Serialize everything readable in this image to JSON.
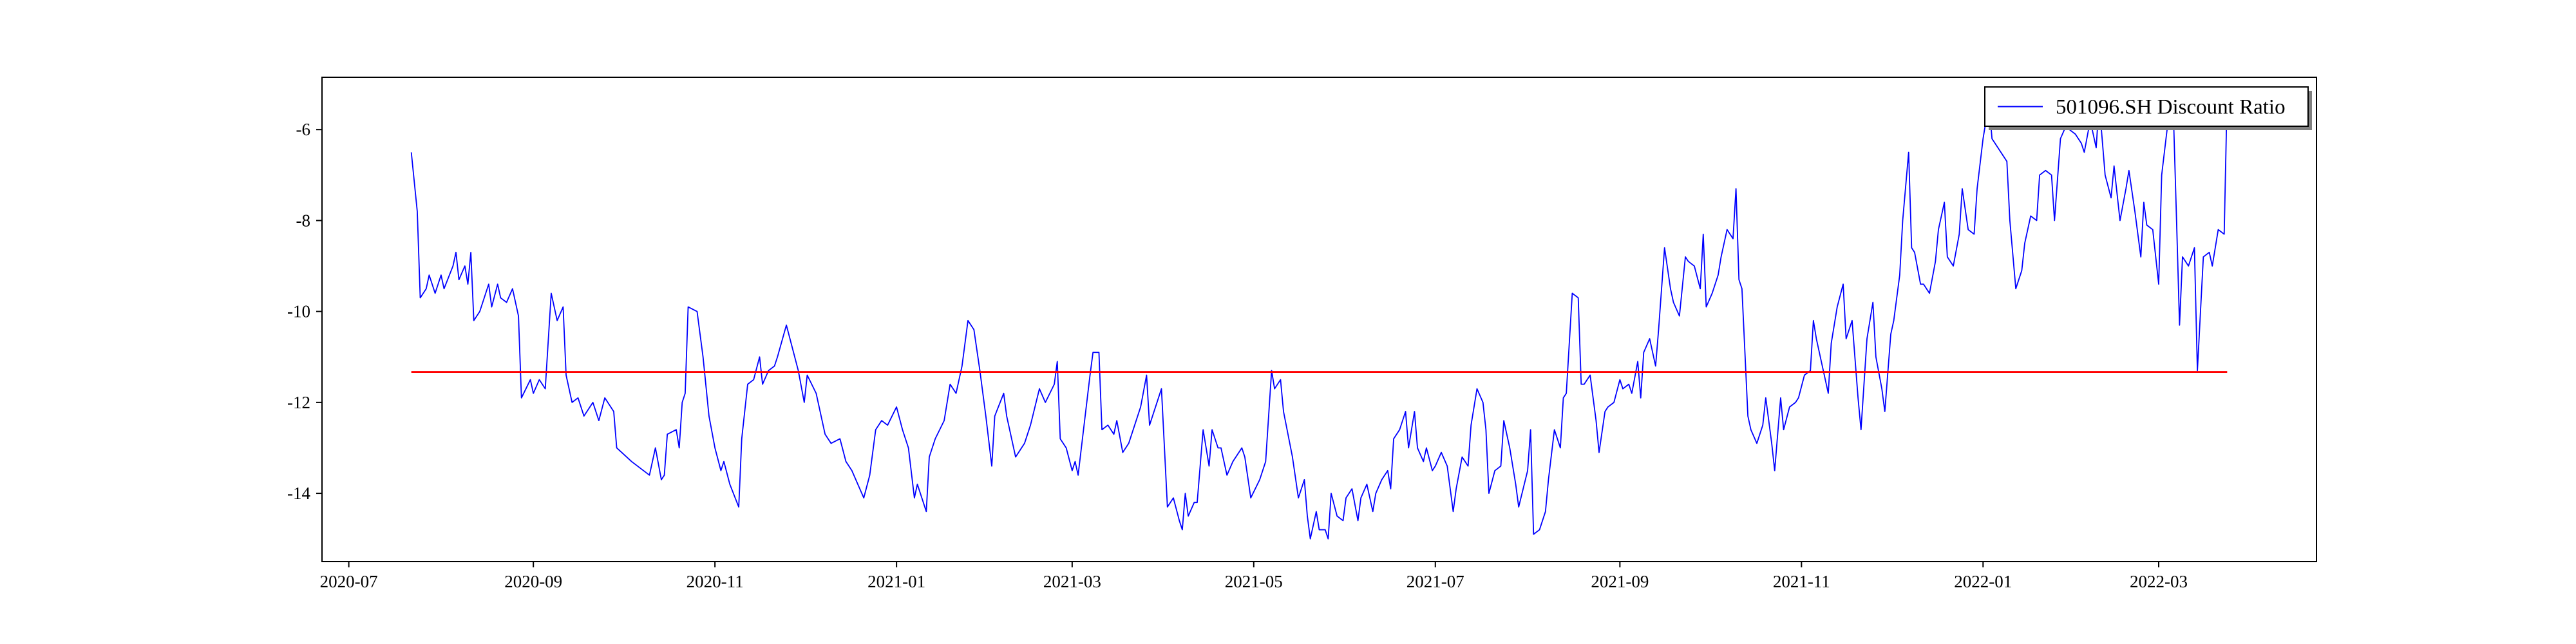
{
  "chart_data": {
    "type": "line",
    "x": [
      18465,
      18467,
      18468,
      18470,
      18471,
      18473,
      18475,
      18476,
      18479,
      18480,
      18481,
      18483,
      18484,
      18485,
      18486,
      18488,
      18490,
      18491,
      18492,
      18494,
      18495,
      18497,
      18499,
      18501,
      18502,
      18505,
      18506,
      18508,
      18510,
      18512,
      18514,
      18516,
      18517,
      18519,
      18521,
      18523,
      18526,
      18528,
      18530,
      18533,
      18534,
      18539,
      18545,
      18547,
      18549,
      18550,
      18551,
      18554,
      18555,
      18556,
      18557,
      18558,
      18561,
      18563,
      18565,
      18567,
      18569,
      18570,
      18572,
      18575,
      18576,
      18578,
      18580,
      18582,
      18583,
      18585,
      18587,
      18588,
      18591,
      18593,
      18595,
      18597,
      18598,
      18601,
      18604,
      18606,
      18609,
      18611,
      18613,
      18617,
      18619,
      18621,
      18623,
      18625,
      18628,
      18630,
      18632,
      18634,
      18635,
      18637,
      18638,
      18639,
      18641,
      18644,
      18646,
      18648,
      18650,
      18652,
      18654,
      18656,
      18658,
      18660,
      18661,
      18664,
      18665,
      18668,
      18671,
      18673,
      18676,
      18678,
      18681,
      18682,
      18683,
      18685,
      18687,
      18688,
      18689,
      18691,
      18693,
      18694,
      18696,
      18697,
      18699,
      18701,
      18702,
      18704,
      18706,
      18708,
      18710,
      18712,
      18713,
      18715,
      18717,
      18718,
      18719,
      18721,
      18723,
      18724,
      18725,
      18726,
      18728,
      18729,
      18731,
      18733,
      18734,
      18736,
      18737,
      18739,
      18741,
      18744,
      18745,
      18747,
      18750,
      18752,
      18754,
      18755,
      18757,
      18758,
      18761,
      18763,
      18765,
      18766,
      18767,
      18769,
      18770,
      18772,
      18773,
      18774,
      18776,
      18778,
      18779,
      18781,
      18783,
      18784,
      18786,
      18788,
      18789,
      18791,
      18793,
      18794,
      18795,
      18797,
      18799,
      18800,
      18802,
      18803,
      18805,
      18806,
      18808,
      18809,
      18811,
      18813,
      18815,
      18816,
      18818,
      18820,
      18821,
      18823,
      18825,
      18826,
      18827,
      18829,
      18831,
      18832,
      18834,
      18836,
      18837,
      18840,
      18841,
      18842,
      18844,
      18846,
      18847,
      18849,
      18851,
      18852,
      18853,
      18855,
      18857,
      18858,
      18859,
      18861,
      18863,
      18864,
      18866,
      18867,
      18869,
      18871,
      18872,
      18874,
      18875,
      18877,
      18878,
      18879,
      18881,
      18883,
      18884,
      18886,
      18888,
      18889,
      18891,
      18893,
      18894,
      18896,
      18898,
      18899,
      18900,
      18902,
      18904,
      18905,
      18907,
      18909,
      18910,
      18911,
      18912,
      18914,
      18915,
      18917,
      18919,
      18920,
      18922,
      18923,
      18925,
      18926,
      18928,
      18930,
      18931,
      18933,
      18935,
      18936,
      18937,
      18939,
      18941,
      18942,
      18944,
      18946,
      18947,
      18949,
      18951,
      18952,
      18954,
      18956,
      18957,
      18959,
      18960,
      18962,
      18963,
      18965,
      18966,
      18968,
      18969,
      18970,
      18972,
      18973,
      18975,
      18977,
      18978,
      18980,
      18981,
      18983,
      18985,
      18986,
      18988,
      18990,
      18991,
      18993,
      18995,
      18996,
      18997,
      18999,
      19001,
      19002,
      19004,
      19006,
      19007,
      19009,
      19011,
      19012,
      19014,
      19016,
      19017,
      19019,
      19021,
      19022,
      19024,
      19026,
      19027,
      19029,
      19031,
      19032,
      19034,
      19036,
      19037,
      19039,
      19041,
      19042,
      19044,
      19046,
      19047,
      19048,
      19050,
      19052,
      19053,
      19055,
      19057,
      19058,
      19059,
      19060,
      19062,
      19064,
      19065,
      19067,
      19069,
      19070,
      19072,
      19074,
      19075
    ],
    "series": [
      {
        "name": "501096.SH Discount Ratio",
        "color": "#0000ff",
        "values": [
          -6.5,
          -7.8,
          -9.7,
          -9.5,
          -9.2,
          -9.6,
          -9.2,
          -9.5,
          -9.0,
          -8.7,
          -9.3,
          -9.0,
          -9.4,
          -8.7,
          -10.2,
          -10.0,
          -9.6,
          -9.4,
          -9.9,
          -9.4,
          -9.7,
          -9.8,
          -9.5,
          -10.1,
          -11.9,
          -11.5,
          -11.8,
          -11.5,
          -11.7,
          -9.6,
          -10.2,
          -9.9,
          -11.4,
          -12.0,
          -11.9,
          -12.3,
          -12.0,
          -12.4,
          -11.9,
          -12.2,
          -13.0,
          -13.3,
          -13.6,
          -13.0,
          -13.7,
          -13.6,
          -12.7,
          -12.6,
          -13.0,
          -12.0,
          -11.8,
          -9.9,
          -10.0,
          -11.0,
          -12.3,
          -13.0,
          -13.5,
          -13.3,
          -13.8,
          -14.3,
          -12.8,
          -11.6,
          -11.5,
          -11.0,
          -11.6,
          -11.3,
          -11.2,
          -11.0,
          -10.3,
          -10.8,
          -11.3,
          -12.0,
          -11.4,
          -11.8,
          -12.7,
          -12.9,
          -12.8,
          -13.3,
          -13.5,
          -14.1,
          -13.6,
          -12.6,
          -12.4,
          -12.5,
          -12.1,
          -12.6,
          -13.0,
          -14.1,
          -13.8,
          -14.2,
          -14.4,
          -13.2,
          -12.8,
          -12.4,
          -11.6,
          -11.8,
          -11.2,
          -10.2,
          -10.4,
          -11.3,
          -12.3,
          -13.4,
          -12.3,
          -11.8,
          -12.3,
          -13.2,
          -12.9,
          -12.5,
          -11.7,
          -12.0,
          -11.6,
          -11.1,
          -12.8,
          -13.0,
          -13.5,
          -13.3,
          -13.6,
          -12.5,
          -11.4,
          -10.9,
          -10.9,
          -12.6,
          -12.5,
          -12.7,
          -12.4,
          -13.1,
          -12.9,
          -12.5,
          -12.1,
          -11.4,
          -12.5,
          -12.1,
          -11.7,
          -13.0,
          -14.3,
          -14.1,
          -14.6,
          -14.8,
          -14.0,
          -14.5,
          -14.2,
          -14.2,
          -12.6,
          -13.4,
          -12.6,
          -13.0,
          -13.0,
          -13.6,
          -13.3,
          -13.0,
          -13.2,
          -14.1,
          -13.7,
          -13.3,
          -11.3,
          -11.7,
          -11.5,
          -12.2,
          -13.2,
          -14.1,
          -13.7,
          -14.5,
          -15.0,
          -14.4,
          -14.8,
          -14.8,
          -15.0,
          -14.0,
          -14.5,
          -14.6,
          -14.1,
          -13.9,
          -14.6,
          -14.1,
          -13.8,
          -14.4,
          -14.0,
          -13.7,
          -13.5,
          -13.9,
          -12.8,
          -12.6,
          -12.2,
          -13.0,
          -12.2,
          -13.0,
          -13.3,
          -13.0,
          -13.5,
          -13.4,
          -13.1,
          -13.4,
          -14.4,
          -13.9,
          -13.2,
          -13.4,
          -12.5,
          -11.7,
          -12.0,
          -12.6,
          -14.0,
          -13.5,
          -13.4,
          -12.4,
          -13.0,
          -13.8,
          -14.3,
          -13.5,
          -12.6,
          -14.9,
          -14.8,
          -14.4,
          -13.7,
          -12.6,
          -13.0,
          -11.9,
          -11.8,
          -9.6,
          -9.7,
          -11.6,
          -11.6,
          -11.4,
          -12.4,
          -13.1,
          -12.2,
          -12.1,
          -12.0,
          -11.5,
          -11.7,
          -11.6,
          -11.8,
          -11.1,
          -11.9,
          -10.9,
          -10.6,
          -11.2,
          -10.4,
          -8.6,
          -9.5,
          -9.8,
          -10.1,
          -8.8,
          -8.9,
          -9.0,
          -9.5,
          -8.3,
          -9.9,
          -9.6,
          -9.2,
          -8.8,
          -8.2,
          -8.4,
          -7.3,
          -9.3,
          -9.5,
          -12.3,
          -12.6,
          -12.9,
          -12.5,
          -11.9,
          -12.9,
          -13.5,
          -11.9,
          -12.6,
          -12.1,
          -12.0,
          -11.9,
          -11.4,
          -11.3,
          -10.2,
          -10.6,
          -11.2,
          -11.8,
          -10.7,
          -9.9,
          -9.4,
          -10.6,
          -10.2,
          -11.9,
          -12.6,
          -10.6,
          -9.8,
          -11.0,
          -11.7,
          -12.2,
          -10.5,
          -10.2,
          -9.2,
          -8.0,
          -6.5,
          -8.6,
          -8.7,
          -9.4,
          -9.4,
          -9.6,
          -8.9,
          -8.2,
          -7.6,
          -8.8,
          -9.0,
          -8.3,
          -7.3,
          -8.2,
          -8.3,
          -7.3,
          -6.2,
          -5.4,
          -6.2,
          -6.3,
          -6.5,
          -6.7,
          -8.0,
          -9.5,
          -9.1,
          -8.5,
          -7.9,
          -8.0,
          -7.0,
          -6.9,
          -7.0,
          -8.0,
          -6.2,
          -5.9,
          -6.0,
          -6.1,
          -6.3,
          -6.5,
          -5.8,
          -6.4,
          -5.4,
          -7.0,
          -7.5,
          -6.8,
          -8.0,
          -7.3,
          -6.9,
          -7.8,
          -8.8,
          -7.6,
          -8.1,
          -8.2,
          -9.4,
          -7.0,
          -5.9,
          -5.8,
          -8.0,
          -10.3,
          -8.8,
          -9.0,
          -8.6,
          -11.3,
          -8.8,
          -8.7,
          -9.0,
          -8.2,
          -8.3,
          -5.2
        ]
      }
    ],
    "mean_line": {
      "value": -11.33,
      "color": "#ff0000"
    },
    "xlim": [
      18435,
      19105
    ],
    "xticks": [
      {
        "value": 18444,
        "label": "2020-07"
      },
      {
        "value": 18506,
        "label": "2020-09"
      },
      {
        "value": 18567,
        "label": "2020-11"
      },
      {
        "value": 18628,
        "label": "2021-01"
      },
      {
        "value": 18687,
        "label": "2021-03"
      },
      {
        "value": 18748,
        "label": "2021-05"
      },
      {
        "value": 18809,
        "label": "2021-07"
      },
      {
        "value": 18871,
        "label": "2021-09"
      },
      {
        "value": 18932,
        "label": "2021-11"
      },
      {
        "value": 18993,
        "label": "2022-01"
      },
      {
        "value": 19052,
        "label": "2022-03"
      }
    ],
    "ylim": [
      -15.5,
      -4.85
    ],
    "yticks": [
      -14,
      -12,
      -10,
      -8,
      -6
    ],
    "legend": "upper right"
  }
}
